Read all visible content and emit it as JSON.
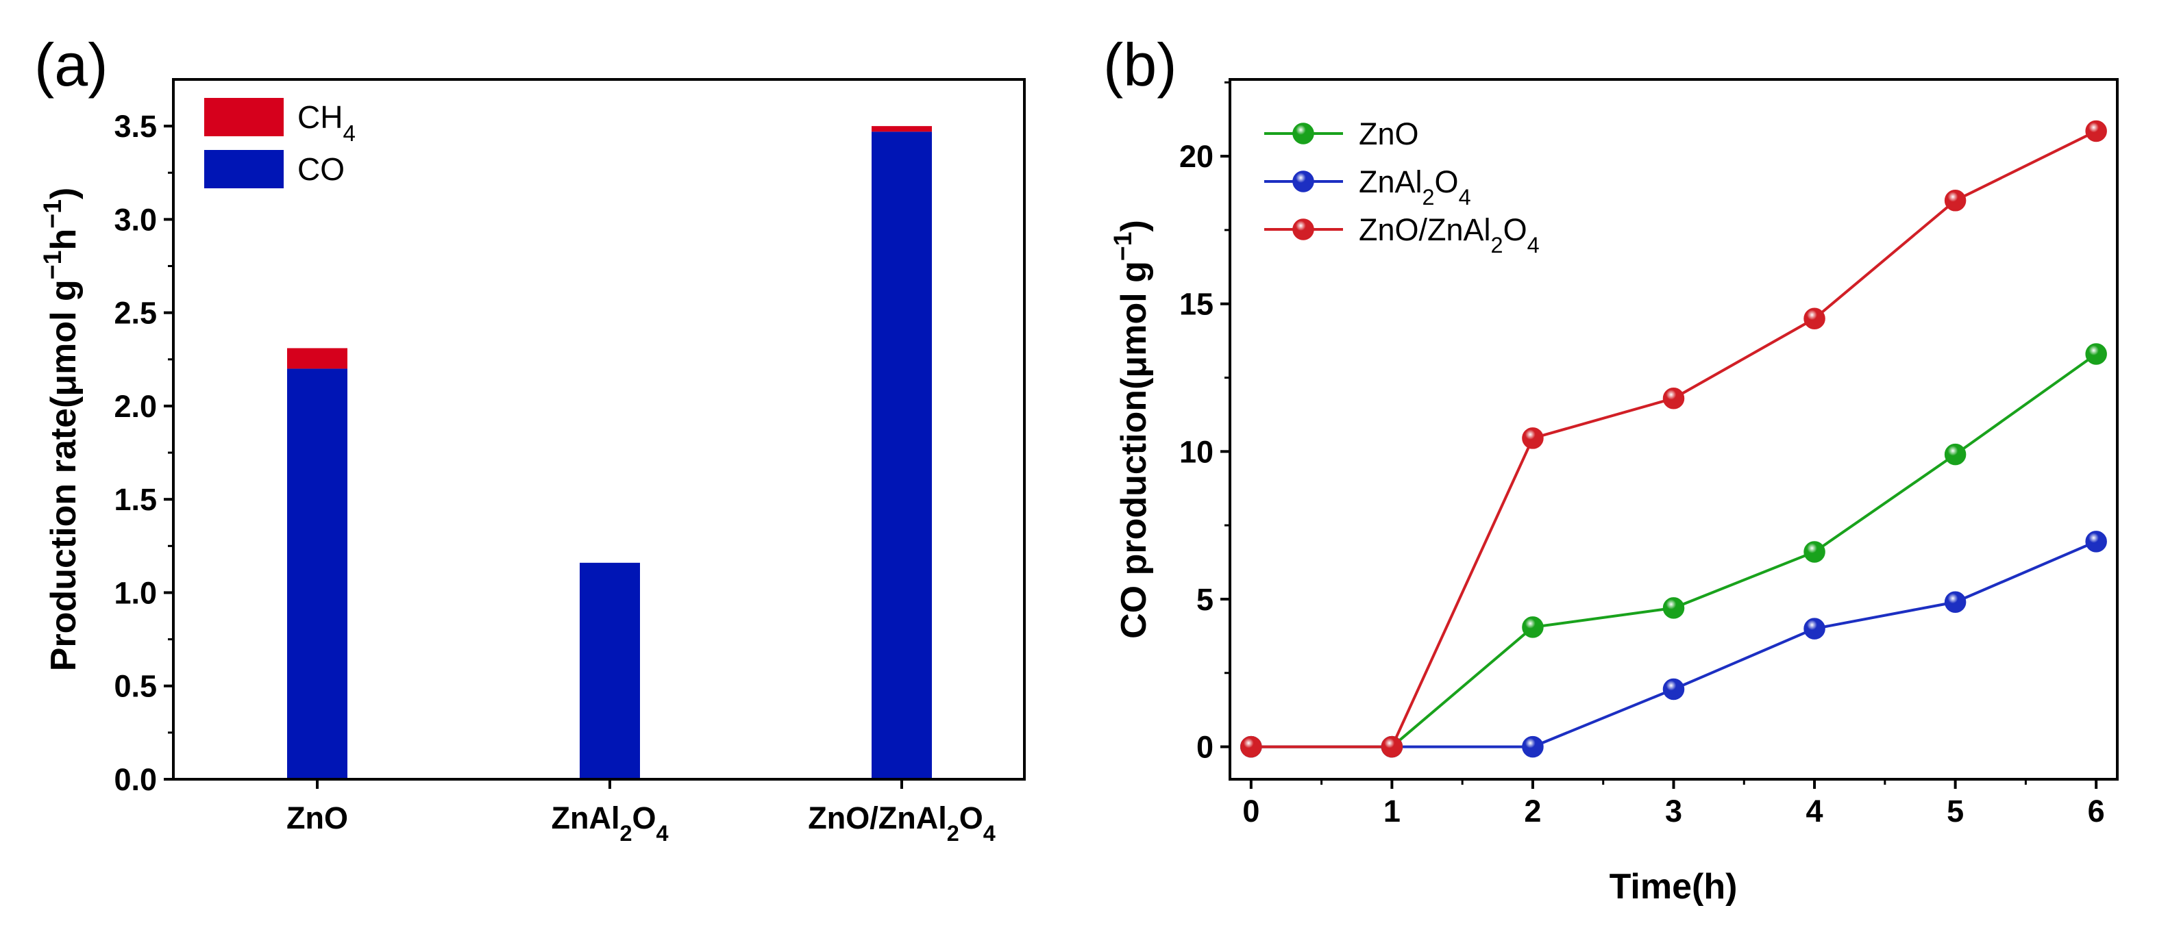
{
  "chart_data": [
    {
      "panel_label": "(a)",
      "type": "bar",
      "stacked": true,
      "categories": [
        {
          "main": "ZnO",
          "parts": [
            {
              "t": "ZnO",
              "sub": false
            }
          ]
        },
        {
          "main": "ZnAl2O4",
          "parts": [
            {
              "t": "ZnAl",
              "sub": false
            },
            {
              "t": "2",
              "sub": true
            },
            {
              "t": "O",
              "sub": false
            },
            {
              "t": "4",
              "sub": true
            }
          ]
        },
        {
          "main": "ZnO/ZnAl2O4",
          "parts": [
            {
              "t": "ZnO/ZnAl",
              "sub": false
            },
            {
              "t": "2",
              "sub": true
            },
            {
              "t": "O",
              "sub": false
            },
            {
              "t": "4",
              "sub": true
            }
          ]
        }
      ],
      "series": [
        {
          "name": "CO",
          "color": "#0015b5",
          "values": [
            2.2,
            1.16,
            3.47
          ]
        },
        {
          "name": "CH4",
          "color": "#d6001c",
          "values": [
            0.11,
            0.0,
            0.03
          ]
        }
      ],
      "legend": [
        {
          "series": "CH4",
          "label": "CH4",
          "parts": [
            {
              "t": "CH",
              "sub": false
            },
            {
              "t": "4",
              "sub": true
            }
          ]
        },
        {
          "series": "CO",
          "label": "CO",
          "parts": [
            {
              "t": "CO",
              "sub": false
            }
          ]
        }
      ],
      "legend_position": "top-left",
      "ylabel": "Production rate(μmol g−1h−1)",
      "ylabel_parts": [
        {
          "t": "Production rate(μmol g",
          "sub": false
        },
        {
          "t": "−1",
          "sup": true
        },
        {
          "t": "h",
          "sub": false
        },
        {
          "t": "−1",
          "sup": true
        },
        {
          "t": ")",
          "sub": false
        }
      ],
      "xlabel": "",
      "ylim": [
        0,
        3.75
      ],
      "yticks": [
        "0.0",
        "0.5",
        "1.0",
        "1.5",
        "2.0",
        "2.5",
        "3.0",
        "3.5"
      ],
      "grid": false
    },
    {
      "panel_label": "(b)",
      "type": "line",
      "x": [
        0,
        1,
        2,
        3,
        4,
        5,
        6
      ],
      "xticks": [
        "0",
        "1",
        "2",
        "3",
        "4",
        "5",
        "6"
      ],
      "series": [
        {
          "name": "ZnO",
          "color": "#19a21c",
          "values": [
            0,
            0,
            4.05,
            4.7,
            6.6,
            9.9,
            13.3
          ],
          "label_parts": [
            {
              "t": "ZnO",
              "sub": false
            }
          ]
        },
        {
          "name": "ZnAl2O4",
          "color": "#1c2fc2",
          "values": [
            0,
            0,
            0,
            1.95,
            4.0,
            4.9,
            6.95
          ],
          "label_parts": [
            {
              "t": "ZnAl",
              "sub": false
            },
            {
              "t": "2",
              "sub": true
            },
            {
              "t": "O",
              "sub": false
            },
            {
              "t": "4",
              "sub": true
            }
          ]
        },
        {
          "name": "ZnO/ZnAl2O4",
          "color": "#d11f26",
          "values": [
            0,
            0,
            10.45,
            11.8,
            14.5,
            18.5,
            20.85
          ],
          "label_parts": [
            {
              "t": "ZnO/ZnAl",
              "sub": false
            },
            {
              "t": "2",
              "sub": true
            },
            {
              "t": "O",
              "sub": false
            },
            {
              "t": "4",
              "sub": true
            }
          ]
        }
      ],
      "legend_position": "top-left",
      "xlabel": "Time(h)",
      "ylabel": "CO production(μmol g−1)",
      "ylabel_parts": [
        {
          "t": "CO production(μmol g",
          "sub": false
        },
        {
          "t": "−1",
          "sup": true
        },
        {
          "t": ")",
          "sub": false
        }
      ],
      "xlim": [
        -0.15,
        6.15
      ],
      "ylim": [
        -1.1,
        22.6
      ],
      "yticks": [
        "0",
        "5",
        "10",
        "15",
        "20"
      ],
      "grid": false
    }
  ]
}
